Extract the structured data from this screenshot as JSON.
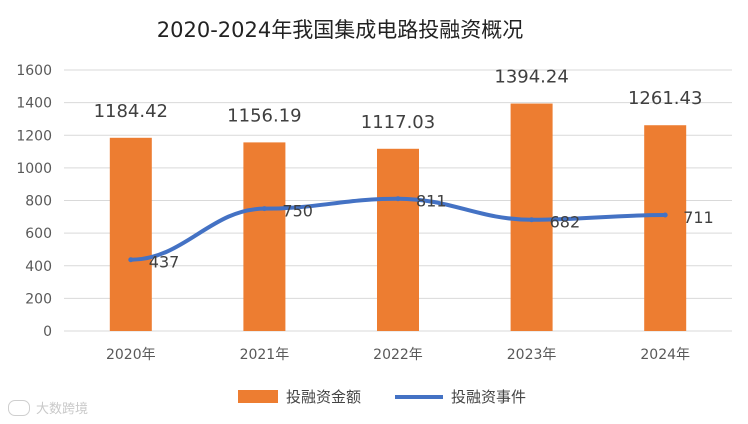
{
  "chart_data": {
    "type": "bar",
    "title": "2020-2024年我国集成电路投融资概况",
    "categories": [
      "2020年",
      "2021年",
      "2022年",
      "2023年",
      "2024年"
    ],
    "series": [
      {
        "name": "投融资金额",
        "type": "bar",
        "color": "#ED7D31",
        "values": [
          1184.42,
          1156.19,
          1117.03,
          1394.24,
          1261.43
        ],
        "labels": [
          "1184.42",
          "1156.19",
          "1117.03",
          "1394.24",
          "1261.43"
        ]
      },
      {
        "name": "投融资事件",
        "type": "line",
        "color": "#4472C4",
        "values": [
          437,
          750,
          811,
          682,
          711
        ],
        "labels": [
          "437",
          "750",
          "811",
          "682",
          "711"
        ]
      }
    ],
    "ylim": [
      0,
      1600
    ],
    "yticks": [
      0,
      200,
      400,
      600,
      800,
      1000,
      1200,
      1400,
      1600
    ],
    "ytick_labels": [
      "0",
      "200",
      "400",
      "600",
      "800",
      "1000",
      "1200",
      "1400",
      "1600"
    ],
    "grid": true,
    "legend_position": "bottom"
  },
  "watermark": "大数跨境"
}
